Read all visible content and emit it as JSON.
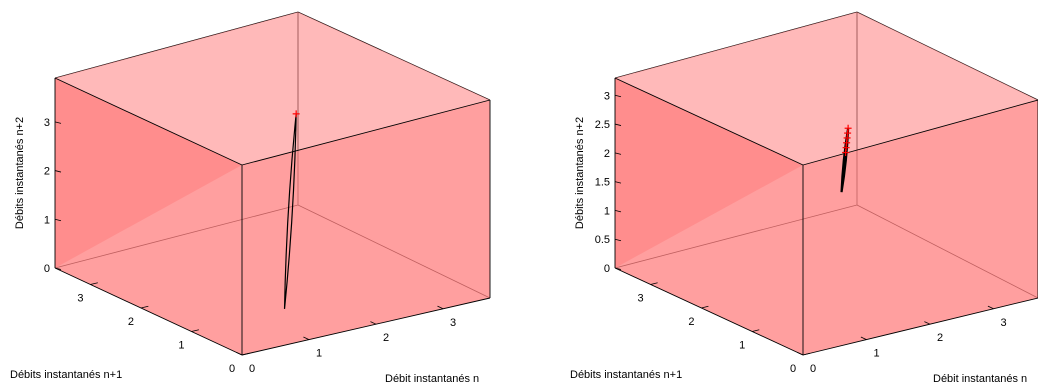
{
  "chart_data": [
    {
      "type": "3d-surface-trajectory",
      "xlabel": "Débit instantanés n",
      "ylabel": "Débits instantanés n+1",
      "zlabel": "Débits instantanés n+2",
      "x_ticks": [
        "0",
        "1",
        "2",
        "3"
      ],
      "y_ticks": [
        "0",
        "1",
        "2",
        "3"
      ],
      "z_ticks": [
        "0",
        "1",
        "2",
        "3"
      ],
      "surface_color": "#ff7f7f",
      "trajectory_color": "#000000",
      "marker_color": "#ff0000",
      "markers": 1
    },
    {
      "type": "3d-surface-trajectory",
      "xlabel": "Débit instantanés n",
      "ylabel": "Débits instantanés n+1",
      "zlabel": "Débits instantanés n+2",
      "x_ticks": [
        "0",
        "1",
        "2",
        "3"
      ],
      "y_ticks": [
        "0",
        "1",
        "2",
        "3"
      ],
      "z_ticks": [
        "0",
        "0.5",
        "1",
        "1.5",
        "2",
        "2.5",
        "3"
      ],
      "surface_color": "#ff7f7f",
      "trajectory_color": "#000000",
      "marker_color": "#ff0000",
      "markers": 6
    }
  ]
}
